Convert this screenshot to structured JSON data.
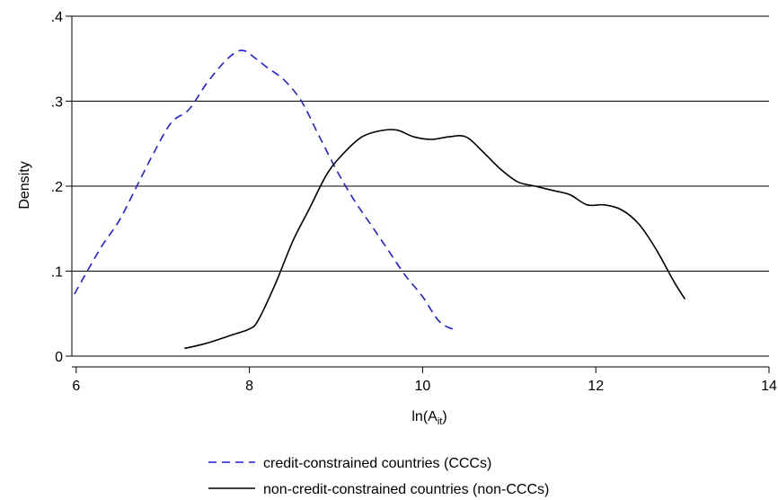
{
  "chart_data": {
    "type": "line",
    "xlabel": "ln(A",
    "xlabel_sub": "it",
    "xlabel_close": ")",
    "ylabel": "Density",
    "xlim": [
      5.95,
      14
    ],
    "ylim": [
      0,
      0.4
    ],
    "x_ticks": [
      6,
      8,
      10,
      12,
      14
    ],
    "x_tick_labels": [
      "6",
      "8",
      "10",
      "12",
      "14"
    ],
    "y_ticks": [
      0,
      0.1,
      0.2,
      0.3,
      0.4
    ],
    "y_tick_labels": [
      "0",
      ".1",
      ".2",
      ".3",
      ".4"
    ],
    "grid": "horizontal",
    "legend_position": "bottom",
    "series": [
      {
        "name": "credit-constrained countries (CCCs)",
        "color": "#1f1fe6",
        "style": "dashed",
        "x": [
          5.98,
          6.1,
          6.3,
          6.5,
          6.7,
          6.9,
          7.1,
          7.3,
          7.5,
          7.7,
          7.85,
          7.95,
          8.05,
          8.2,
          8.4,
          8.6,
          8.8,
          9.0,
          9.2,
          9.4,
          9.6,
          9.8,
          10.0,
          10.2,
          10.4
        ],
        "y": [
          0.073,
          0.095,
          0.13,
          0.16,
          0.2,
          0.24,
          0.275,
          0.29,
          0.32,
          0.345,
          0.358,
          0.359,
          0.352,
          0.34,
          0.325,
          0.3,
          0.26,
          0.22,
          0.185,
          0.155,
          0.125,
          0.095,
          0.07,
          0.04,
          0.03
        ]
      },
      {
        "name": "non-credit-constrained countries (non-CCCs)",
        "color": "#000000",
        "style": "solid",
        "x": [
          7.25,
          7.5,
          7.8,
          8.0,
          8.1,
          8.3,
          8.5,
          8.7,
          8.9,
          9.1,
          9.3,
          9.5,
          9.7,
          9.9,
          10.1,
          10.3,
          10.5,
          10.7,
          10.9,
          11.1,
          11.3,
          11.5,
          11.7,
          11.9,
          12.1,
          12.3,
          12.5,
          12.7,
          12.9,
          13.03
        ],
        "y": [
          0.009,
          0.015,
          0.025,
          0.032,
          0.042,
          0.085,
          0.135,
          0.175,
          0.215,
          0.24,
          0.258,
          0.265,
          0.266,
          0.258,
          0.255,
          0.258,
          0.258,
          0.24,
          0.22,
          0.205,
          0.2,
          0.195,
          0.19,
          0.178,
          0.178,
          0.172,
          0.155,
          0.125,
          0.088,
          0.067
        ]
      }
    ]
  }
}
